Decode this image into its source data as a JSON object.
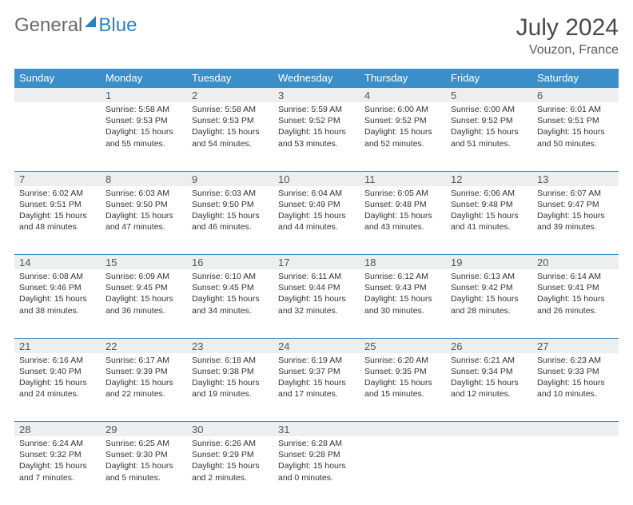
{
  "brand": {
    "general": "General",
    "blue": "Blue"
  },
  "title": "July 2024",
  "location": "Vouzon, France",
  "colors": {
    "header_bg": "#3a8fc9",
    "header_text": "#ffffff",
    "daynum_bg": "#eceeef",
    "border": "#3a8fc9",
    "text": "#333333",
    "title_text": "#4a4a4a",
    "brand_gray": "#6a6a6a",
    "brand_blue": "#2e7fbb"
  },
  "weekdays": [
    "Sunday",
    "Monday",
    "Tuesday",
    "Wednesday",
    "Thursday",
    "Friday",
    "Saturday"
  ],
  "first_weekday_index": 1,
  "days": [
    {
      "n": 1,
      "sunrise": "5:58 AM",
      "sunset": "9:53 PM",
      "daylight": "15 hours and 55 minutes."
    },
    {
      "n": 2,
      "sunrise": "5:58 AM",
      "sunset": "9:53 PM",
      "daylight": "15 hours and 54 minutes."
    },
    {
      "n": 3,
      "sunrise": "5:59 AM",
      "sunset": "9:52 PM",
      "daylight": "15 hours and 53 minutes."
    },
    {
      "n": 4,
      "sunrise": "6:00 AM",
      "sunset": "9:52 PM",
      "daylight": "15 hours and 52 minutes."
    },
    {
      "n": 5,
      "sunrise": "6:00 AM",
      "sunset": "9:52 PM",
      "daylight": "15 hours and 51 minutes."
    },
    {
      "n": 6,
      "sunrise": "6:01 AM",
      "sunset": "9:51 PM",
      "daylight": "15 hours and 50 minutes."
    },
    {
      "n": 7,
      "sunrise": "6:02 AM",
      "sunset": "9:51 PM",
      "daylight": "15 hours and 48 minutes."
    },
    {
      "n": 8,
      "sunrise": "6:03 AM",
      "sunset": "9:50 PM",
      "daylight": "15 hours and 47 minutes."
    },
    {
      "n": 9,
      "sunrise": "6:03 AM",
      "sunset": "9:50 PM",
      "daylight": "15 hours and 46 minutes."
    },
    {
      "n": 10,
      "sunrise": "6:04 AM",
      "sunset": "9:49 PM",
      "daylight": "15 hours and 44 minutes."
    },
    {
      "n": 11,
      "sunrise": "6:05 AM",
      "sunset": "9:48 PM",
      "daylight": "15 hours and 43 minutes."
    },
    {
      "n": 12,
      "sunrise": "6:06 AM",
      "sunset": "9:48 PM",
      "daylight": "15 hours and 41 minutes."
    },
    {
      "n": 13,
      "sunrise": "6:07 AM",
      "sunset": "9:47 PM",
      "daylight": "15 hours and 39 minutes."
    },
    {
      "n": 14,
      "sunrise": "6:08 AM",
      "sunset": "9:46 PM",
      "daylight": "15 hours and 38 minutes."
    },
    {
      "n": 15,
      "sunrise": "6:09 AM",
      "sunset": "9:45 PM",
      "daylight": "15 hours and 36 minutes."
    },
    {
      "n": 16,
      "sunrise": "6:10 AM",
      "sunset": "9:45 PM",
      "daylight": "15 hours and 34 minutes."
    },
    {
      "n": 17,
      "sunrise": "6:11 AM",
      "sunset": "9:44 PM",
      "daylight": "15 hours and 32 minutes."
    },
    {
      "n": 18,
      "sunrise": "6:12 AM",
      "sunset": "9:43 PM",
      "daylight": "15 hours and 30 minutes."
    },
    {
      "n": 19,
      "sunrise": "6:13 AM",
      "sunset": "9:42 PM",
      "daylight": "15 hours and 28 minutes."
    },
    {
      "n": 20,
      "sunrise": "6:14 AM",
      "sunset": "9:41 PM",
      "daylight": "15 hours and 26 minutes."
    },
    {
      "n": 21,
      "sunrise": "6:16 AM",
      "sunset": "9:40 PM",
      "daylight": "15 hours and 24 minutes."
    },
    {
      "n": 22,
      "sunrise": "6:17 AM",
      "sunset": "9:39 PM",
      "daylight": "15 hours and 22 minutes."
    },
    {
      "n": 23,
      "sunrise": "6:18 AM",
      "sunset": "9:38 PM",
      "daylight": "15 hours and 19 minutes."
    },
    {
      "n": 24,
      "sunrise": "6:19 AM",
      "sunset": "9:37 PM",
      "daylight": "15 hours and 17 minutes."
    },
    {
      "n": 25,
      "sunrise": "6:20 AM",
      "sunset": "9:35 PM",
      "daylight": "15 hours and 15 minutes."
    },
    {
      "n": 26,
      "sunrise": "6:21 AM",
      "sunset": "9:34 PM",
      "daylight": "15 hours and 12 minutes."
    },
    {
      "n": 27,
      "sunrise": "6:23 AM",
      "sunset": "9:33 PM",
      "daylight": "15 hours and 10 minutes."
    },
    {
      "n": 28,
      "sunrise": "6:24 AM",
      "sunset": "9:32 PM",
      "daylight": "15 hours and 7 minutes."
    },
    {
      "n": 29,
      "sunrise": "6:25 AM",
      "sunset": "9:30 PM",
      "daylight": "15 hours and 5 minutes."
    },
    {
      "n": 30,
      "sunrise": "6:26 AM",
      "sunset": "9:29 PM",
      "daylight": "15 hours and 2 minutes."
    },
    {
      "n": 31,
      "sunrise": "6:28 AM",
      "sunset": "9:28 PM",
      "daylight": "15 hours and 0 minutes."
    }
  ],
  "labels": {
    "sunrise": "Sunrise:",
    "sunset": "Sunset:",
    "daylight": "Daylight:"
  }
}
